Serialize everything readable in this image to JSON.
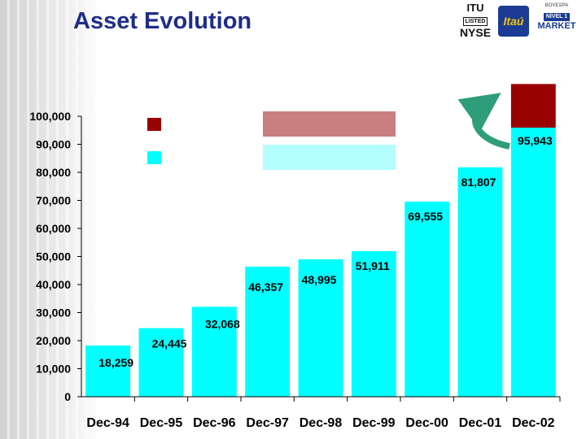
{
  "title": "Asset Evolution",
  "logos": {
    "nyse_line1": "ITU",
    "nyse_line2": "LISTED",
    "nyse_line3": "NYSE",
    "itau": "Itaú",
    "market_line1": "BOVESPA",
    "market_line2": "NÍVEL 1",
    "market_line3": "MARKET"
  },
  "colors": {
    "bar": "#00ffff",
    "top_segment": "#990000",
    "legend_red_box": "#c97f7f",
    "legend_cyan_box": "#b3ffff",
    "title": "#1f2d8a",
    "arrow": "#2e9e7a"
  },
  "chart_data": {
    "type": "bar",
    "categories": [
      "Dec-94",
      "Dec-95",
      "Dec-96",
      "Dec-97",
      "Dec-98",
      "Dec-99",
      "Dec-00",
      "Dec-01",
      "Dec-02"
    ],
    "values": [
      18259,
      24445,
      32068,
      46357,
      48995,
      51911,
      69555,
      81807,
      95943
    ],
    "data_labels": [
      "18,259",
      "24,445",
      "32,068",
      "46,357",
      "48,995",
      "51,911",
      "69,555",
      "81,807",
      "95,943"
    ],
    "stacked_top": {
      "category": "Dec-02",
      "base": 95943,
      "top": 111500
    },
    "ylim": [
      0,
      100000
    ],
    "yticks": [
      0,
      10000,
      20000,
      30000,
      40000,
      50000,
      60000,
      70000,
      80000,
      90000,
      100000
    ],
    "ytick_labels": [
      "0",
      "10,000",
      "20,000",
      "30,000",
      "40,000",
      "50,000",
      "60,000",
      "70,000",
      "80,000",
      "90,000",
      "100,000"
    ],
    "legend": {
      "placement": "top-center",
      "entries": [
        "",
        ""
      ]
    },
    "grid": false
  }
}
